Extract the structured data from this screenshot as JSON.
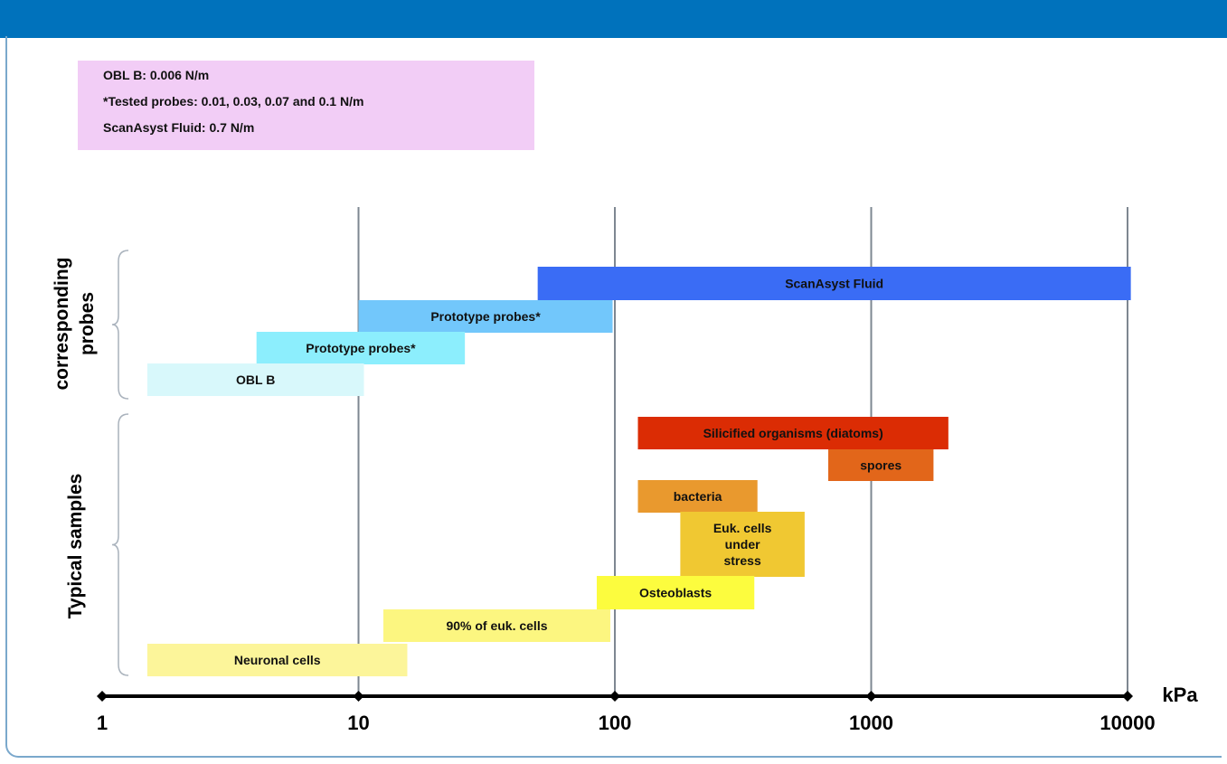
{
  "info_box": {
    "lines": [
      "OBL B: 0.006 N/m",
      "*Tested probes: 0.01, 0.03, 0.07 and 0.1 N/m",
      "ScanAsyst Fluid: 0.7 N/m"
    ]
  },
  "chart_data": {
    "type": "bar",
    "orientation": "horizontal-range",
    "x_scale": "log",
    "xlim": [
      1,
      10000
    ],
    "x_ticks": [
      1,
      10,
      100,
      1000,
      10000
    ],
    "x_tick_labels": [
      "1",
      "10",
      "100",
      "1000",
      "10000"
    ],
    "xlabel": "kPa",
    "grid": "vertical lines at 10, 100, 1000, 10000",
    "groups": [
      {
        "label": "corresponding probes",
        "bars": [
          {
            "label": "ScanAsyst Fluid",
            "x_start": 50,
            "x_end": 10300,
            "color": "#3a6cf5",
            "lines": [
              "ScanAsyst Fluid"
            ]
          },
          {
            "label": "Prototype probes*",
            "x_start": 10,
            "x_end": 98,
            "color": "#72c7fb",
            "lines": [
              "Prototype probes*"
            ]
          },
          {
            "label": "Prototype probes*",
            "x_start": 4,
            "x_end": 26,
            "color": "#8ceefd",
            "lines": [
              "Prototype probes*"
            ]
          },
          {
            "label": "OBL B",
            "x_start": 1.5,
            "x_end": 10.5,
            "color": "#d8f8fb",
            "lines": [
              "OBL B"
            ]
          }
        ]
      },
      {
        "label": "Typical samples",
        "bars": [
          {
            "label": "Silicified organisms (diatoms)",
            "x_start": 123,
            "x_end": 2000,
            "color": "#db2c04",
            "lines": [
              "Silicified organisms (diatoms)"
            ]
          },
          {
            "label": "spores",
            "x_start": 680,
            "x_end": 1750,
            "color": "#e2661a",
            "lines": [
              "spores"
            ]
          },
          {
            "label": "bacteria",
            "x_start": 123,
            "x_end": 360,
            "color": "#e9992e",
            "lines": [
              "bacteria"
            ]
          },
          {
            "label": "Euk. cells under stress",
            "x_start": 180,
            "x_end": 550,
            "color": "#f0c832",
            "lines": [
              "Euk. cells",
              "under",
              "stress"
            ]
          },
          {
            "label": "Osteoblasts",
            "x_start": 85,
            "x_end": 350,
            "color": "#fcfc3e",
            "lines": [
              "Osteoblasts"
            ]
          },
          {
            "label": "90% of euk. cells",
            "x_start": 12.5,
            "x_end": 96,
            "color": "#fcf680",
            "lines": [
              "90% of euk. cells"
            ]
          },
          {
            "label": "Neuronal cells",
            "x_start": 1.5,
            "x_end": 15.5,
            "color": "#fcf59a",
            "lines": [
              "Neuronal cells"
            ]
          }
        ]
      }
    ],
    "group_label_lines": {
      "corresponding probes": [
        "corresponding",
        "probes"
      ],
      "Typical samples": [
        "Typical samples"
      ]
    }
  }
}
